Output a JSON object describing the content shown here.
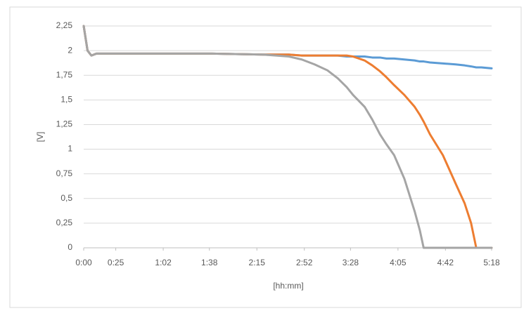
{
  "chart_data": {
    "type": "line",
    "x": [
      0,
      3,
      6,
      10,
      30,
      60,
      100,
      140,
      160,
      170,
      180,
      190,
      198,
      205,
      210,
      219,
      225,
      231,
      236,
      242,
      250,
      258,
      262,
      265,
      270,
      280,
      290,
      297,
      302,
      306,
      310,
      318
    ],
    "series": [
      {
        "color": "#5b9bd5",
        "values": [
          2.25,
          2.0,
          1.95,
          1.97,
          1.97,
          1.97,
          1.97,
          1.96,
          1.96,
          1.95,
          1.95,
          1.95,
          1.95,
          1.94,
          1.94,
          1.94,
          1.93,
          1.93,
          1.92,
          1.92,
          1.91,
          1.9,
          1.89,
          1.89,
          1.88,
          1.87,
          1.86,
          1.85,
          1.84,
          1.83,
          1.83,
          1.82
        ]
      },
      {
        "color": "#ed7d31",
        "values": [
          2.25,
          2.0,
          1.95,
          1.97,
          1.97,
          1.97,
          1.97,
          1.96,
          1.96,
          1.95,
          1.95,
          1.95,
          1.95,
          1.95,
          1.94,
          1.9,
          1.85,
          1.79,
          1.73,
          1.65,
          1.55,
          1.43,
          1.35,
          1.28,
          1.15,
          0.94,
          0.65,
          0.45,
          0.25,
          0,
          0,
          0
        ]
      },
      {
        "color": "#a5a5a5",
        "values": [
          2.25,
          2.0,
          1.95,
          1.97,
          1.97,
          1.97,
          1.97,
          1.96,
          1.94,
          1.91,
          1.86,
          1.8,
          1.72,
          1.63,
          1.55,
          1.43,
          1.3,
          1.15,
          1.05,
          0.94,
          0.7,
          0.37,
          0.18,
          0,
          0,
          0,
          0,
          0,
          0,
          0,
          0,
          0
        ]
      }
    ],
    "xlim": [
      0,
      318
    ],
    "xticks": [
      {
        "value": 0,
        "label": "0:00"
      },
      {
        "value": 25,
        "label": "0:25"
      },
      {
        "value": 62,
        "label": "1:02"
      },
      {
        "value": 98,
        "label": "1:38"
      },
      {
        "value": 135,
        "label": "2:15"
      },
      {
        "value": 172,
        "label": "2:52"
      },
      {
        "value": 208,
        "label": "3:28"
      },
      {
        "value": 245,
        "label": "4:05"
      },
      {
        "value": 282,
        "label": "4:42"
      },
      {
        "value": 318,
        "label": "5:18"
      }
    ],
    "ylim": [
      0,
      2.25
    ],
    "yticks": [
      0,
      {
        "value": 0.25,
        "label": "0,25"
      },
      {
        "value": 0.5,
        "label": "0,5"
      },
      {
        "value": 0.75,
        "label": "0,75"
      },
      1,
      {
        "value": 1.25,
        "label": "1,25"
      },
      {
        "value": 1.5,
        "label": "1,5"
      },
      {
        "value": 1.75,
        "label": "1,75"
      },
      2,
      {
        "value": 2.25,
        "label": "2,25"
      }
    ],
    "xlabel": "[hh:mm]",
    "ylabel": "[V]",
    "grid": true
  }
}
